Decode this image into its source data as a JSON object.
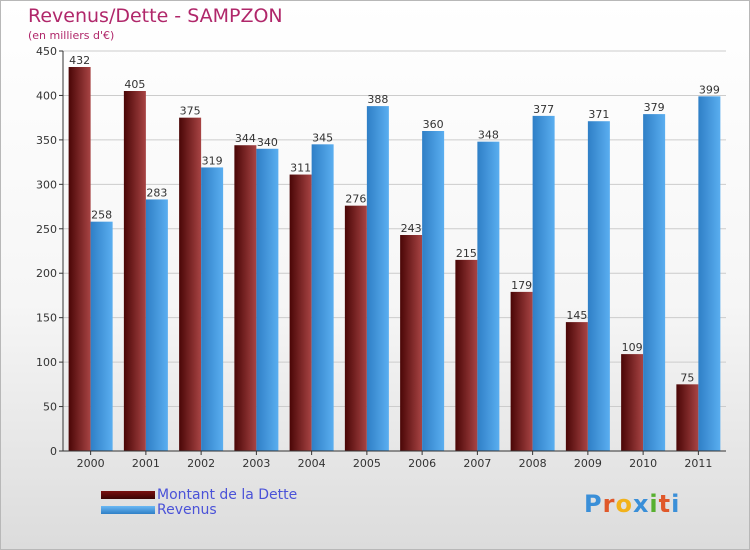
{
  "header": {
    "title": "Revenus/Dette - SAMPZON",
    "subtitle": "(en milliers d'€)"
  },
  "legend": {
    "items": [
      {
        "label": "Montant de la Dette",
        "color": "#6b0d0d"
      },
      {
        "label": "Revenus",
        "color": "#3f9be6"
      }
    ]
  },
  "logo": {
    "text": "Proxiti"
  },
  "colors": {
    "debt_dark": "#4a0606",
    "debt_light": "#a84444",
    "rev_dark": "#2f7fc6",
    "rev_light": "#5aaef0",
    "grid": "#cccccc",
    "axis": "#333333"
  },
  "chart_data": {
    "type": "bar",
    "title": "Revenus/Dette - SAMPZON",
    "ylabel": "(en milliers d'€)",
    "xlabel": "",
    "ylim": [
      0,
      450
    ],
    "yticks": [
      0,
      50,
      100,
      150,
      200,
      250,
      300,
      350,
      400,
      450
    ],
    "grid": true,
    "categories": [
      "2000",
      "2001",
      "2002",
      "2003",
      "2004",
      "2005",
      "2006",
      "2007",
      "2008",
      "2009",
      "2010",
      "2011"
    ],
    "series": [
      {
        "name": "Montant de la Dette",
        "values": [
          432,
          405,
          375,
          344,
          311,
          276,
          243,
          215,
          179,
          145,
          109,
          75
        ]
      },
      {
        "name": "Revenus",
        "values": [
          258,
          283,
          319,
          340,
          345,
          388,
          360,
          348,
          377,
          371,
          379,
          399
        ]
      }
    ]
  }
}
